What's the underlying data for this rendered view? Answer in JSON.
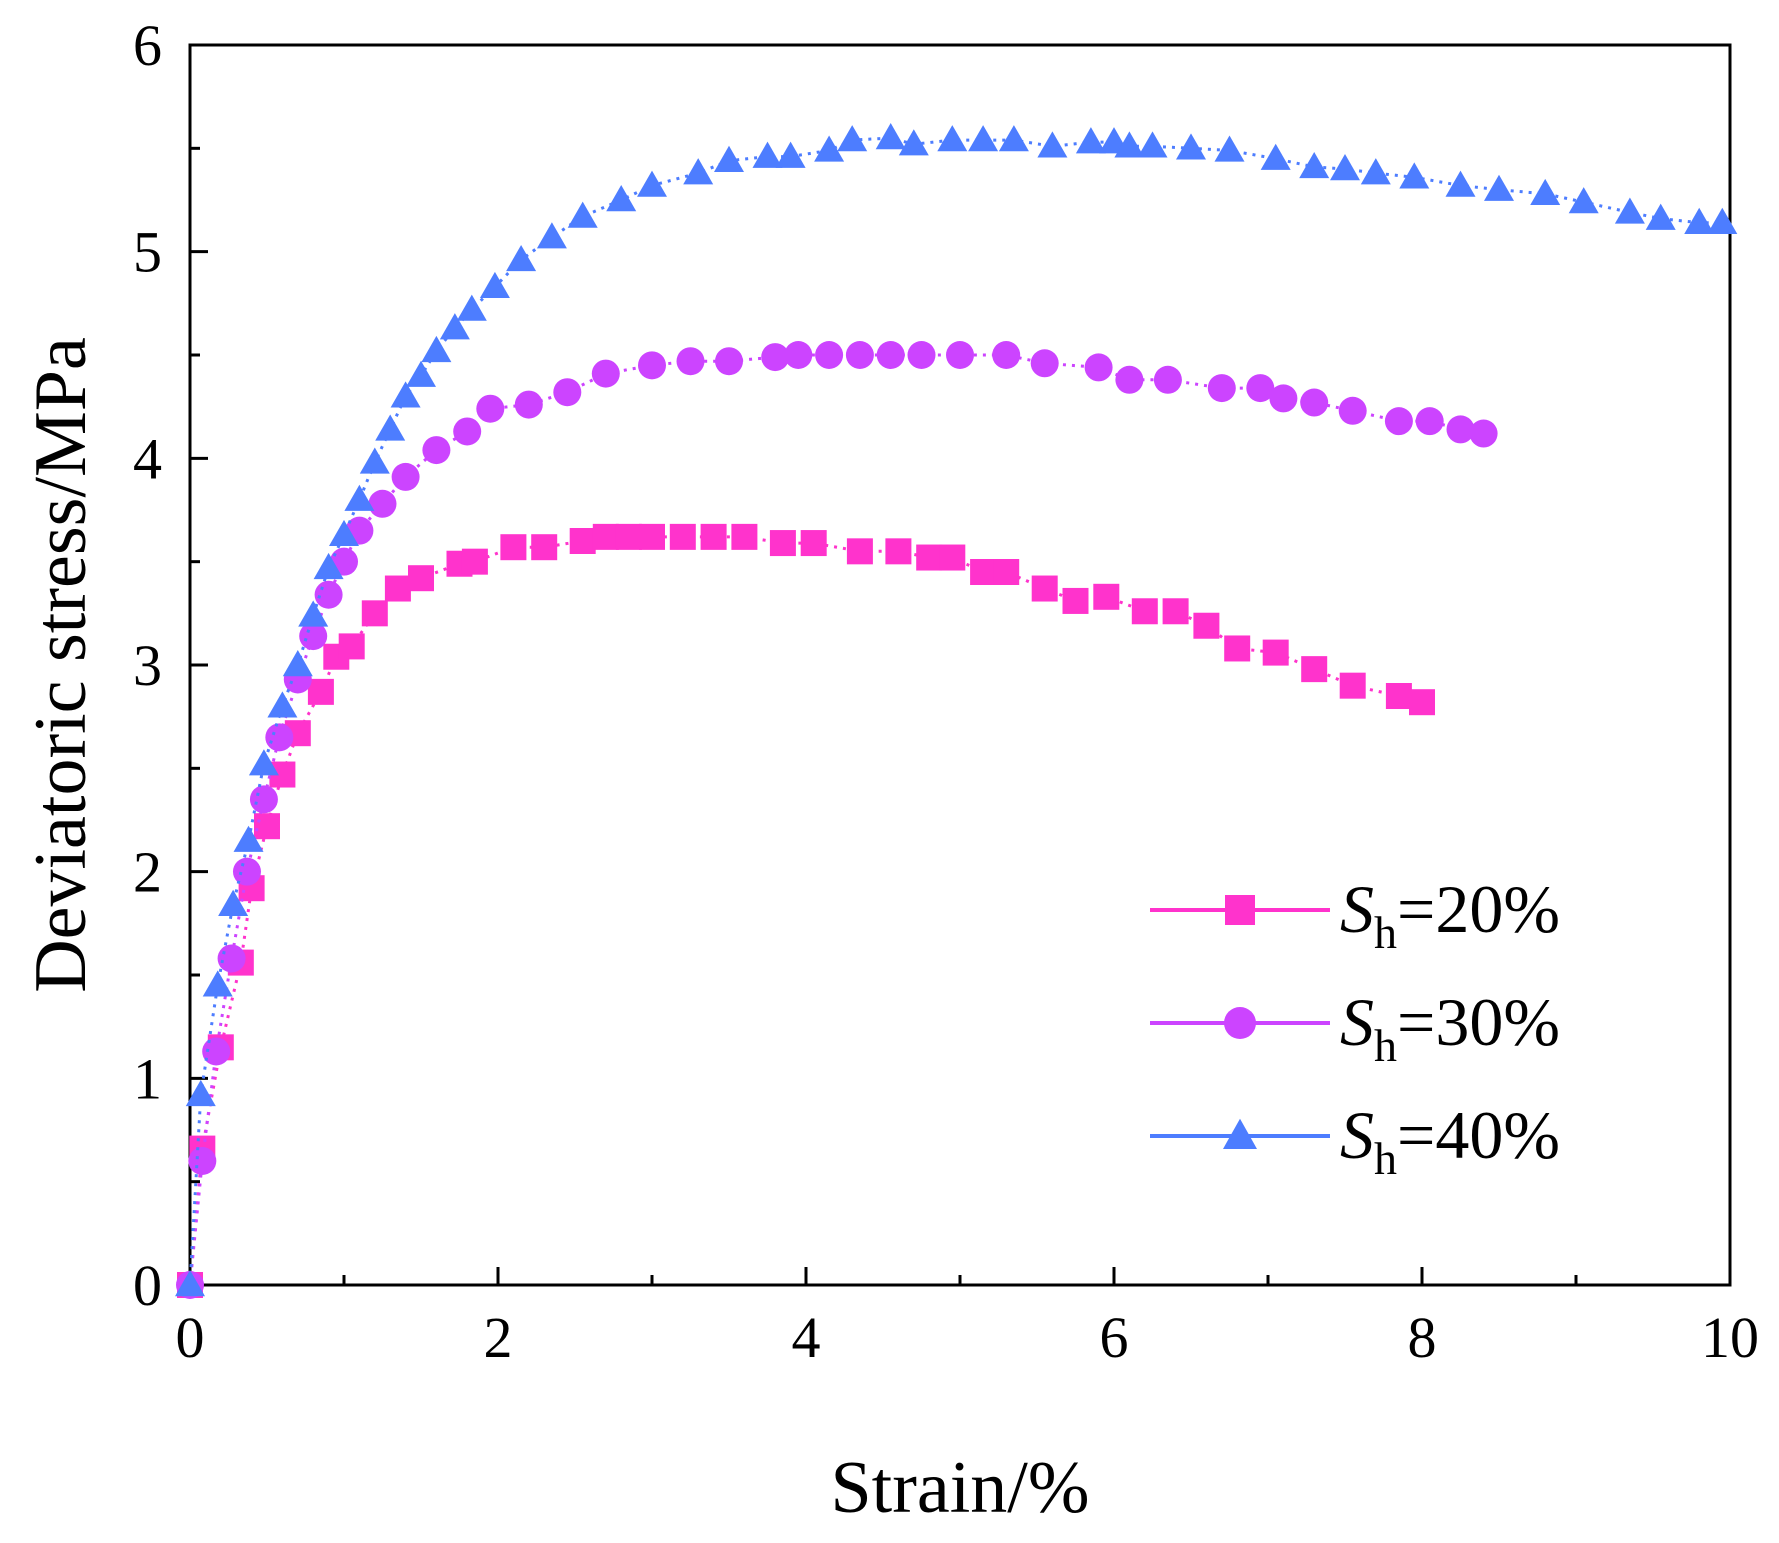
{
  "chart_data": {
    "type": "line",
    "title": "",
    "xlabel": "Strain/%",
    "ylabel": "Deviatoric stress/MPa",
    "xlim": [
      0,
      10
    ],
    "ylim": [
      0,
      6
    ],
    "xticks": [
      0,
      2,
      4,
      6,
      8,
      10
    ],
    "yticks": [
      0,
      1,
      2,
      3,
      4,
      5,
      6
    ],
    "legend_position": "bottom-right",
    "series": [
      {
        "name": "Sh=20%",
        "legend_italic": "S",
        "legend_sub": "h",
        "legend_rest": "=20%",
        "marker": "square",
        "color": "#ff33cc",
        "x": [
          0.0,
          0.08,
          0.2,
          0.33,
          0.4,
          0.5,
          0.6,
          0.7,
          0.85,
          0.95,
          1.05,
          1.2,
          1.35,
          1.5,
          1.75,
          1.85,
          2.1,
          2.3,
          2.55,
          2.7,
          2.85,
          3.0,
          3.2,
          3.4,
          3.6,
          3.85,
          4.05,
          4.35,
          4.6,
          4.8,
          4.95,
          5.15,
          5.3,
          5.55,
          5.75,
          5.95,
          6.2,
          6.4,
          6.6,
          6.8,
          7.05,
          7.3,
          7.55,
          7.85,
          8.0
        ],
        "y": [
          0.0,
          0.66,
          1.15,
          1.56,
          1.92,
          2.22,
          2.47,
          2.67,
          2.87,
          3.04,
          3.09,
          3.25,
          3.37,
          3.42,
          3.49,
          3.5,
          3.57,
          3.57,
          3.6,
          3.62,
          3.62,
          3.62,
          3.62,
          3.62,
          3.62,
          3.59,
          3.59,
          3.55,
          3.55,
          3.52,
          3.52,
          3.45,
          3.45,
          3.37,
          3.31,
          3.33,
          3.26,
          3.26,
          3.19,
          3.08,
          3.06,
          2.98,
          2.9,
          2.85,
          2.82
        ]
      },
      {
        "name": "Sh=30%",
        "legend_italic": "S",
        "legend_sub": "h",
        "legend_rest": "=30%",
        "marker": "circle",
        "color": "#cc44ff",
        "x": [
          0.0,
          0.08,
          0.17,
          0.27,
          0.37,
          0.48,
          0.58,
          0.7,
          0.8,
          0.9,
          1.0,
          1.1,
          1.25,
          1.4,
          1.6,
          1.8,
          1.95,
          2.2,
          2.45,
          2.7,
          3.0,
          3.25,
          3.5,
          3.8,
          3.95,
          4.15,
          4.35,
          4.55,
          4.75,
          5.0,
          5.3,
          5.55,
          5.9,
          6.1,
          6.35,
          6.7,
          6.95,
          7.1,
          7.3,
          7.55,
          7.85,
          8.05,
          8.25,
          8.4
        ],
        "y": [
          0.0,
          0.6,
          1.13,
          1.58,
          2.0,
          2.35,
          2.65,
          2.93,
          3.14,
          3.34,
          3.5,
          3.65,
          3.78,
          3.91,
          4.04,
          4.13,
          4.24,
          4.26,
          4.32,
          4.41,
          4.45,
          4.47,
          4.47,
          4.49,
          4.5,
          4.5,
          4.5,
          4.5,
          4.5,
          4.5,
          4.5,
          4.46,
          4.44,
          4.38,
          4.38,
          4.34,
          4.34,
          4.29,
          4.27,
          4.23,
          4.18,
          4.18,
          4.14,
          4.12
        ]
      },
      {
        "name": "Sh=40%",
        "legend_italic": "S",
        "legend_sub": "h",
        "legend_rest": "=40%",
        "marker": "triangle",
        "color": "#4d7dff",
        "x": [
          0.0,
          0.07,
          0.18,
          0.28,
          0.38,
          0.48,
          0.6,
          0.7,
          0.8,
          0.9,
          1.0,
          1.1,
          1.2,
          1.3,
          1.4,
          1.5,
          1.6,
          1.72,
          1.83,
          1.98,
          2.15,
          2.35,
          2.55,
          2.8,
          3.0,
          3.3,
          3.5,
          3.75,
          3.9,
          4.15,
          4.3,
          4.55,
          4.7,
          4.95,
          5.15,
          5.35,
          5.6,
          5.85,
          6.0,
          6.1,
          6.25,
          6.5,
          6.75,
          7.05,
          7.3,
          7.5,
          7.7,
          7.95,
          8.25,
          8.5,
          8.8,
          9.05,
          9.35,
          9.55,
          9.8,
          9.95
        ],
        "y": [
          0.0,
          0.92,
          1.45,
          1.84,
          2.15,
          2.52,
          2.8,
          3.0,
          3.24,
          3.47,
          3.63,
          3.8,
          3.98,
          4.14,
          4.3,
          4.4,
          4.52,
          4.63,
          4.72,
          4.83,
          4.96,
          5.07,
          5.17,
          5.25,
          5.32,
          5.38,
          5.44,
          5.46,
          5.46,
          5.49,
          5.54,
          5.55,
          5.52,
          5.54,
          5.54,
          5.54,
          5.51,
          5.53,
          5.53,
          5.51,
          5.51,
          5.5,
          5.49,
          5.45,
          5.41,
          5.4,
          5.38,
          5.36,
          5.32,
          5.3,
          5.28,
          5.24,
          5.19,
          5.16,
          5.14,
          5.14
        ]
      }
    ]
  }
}
